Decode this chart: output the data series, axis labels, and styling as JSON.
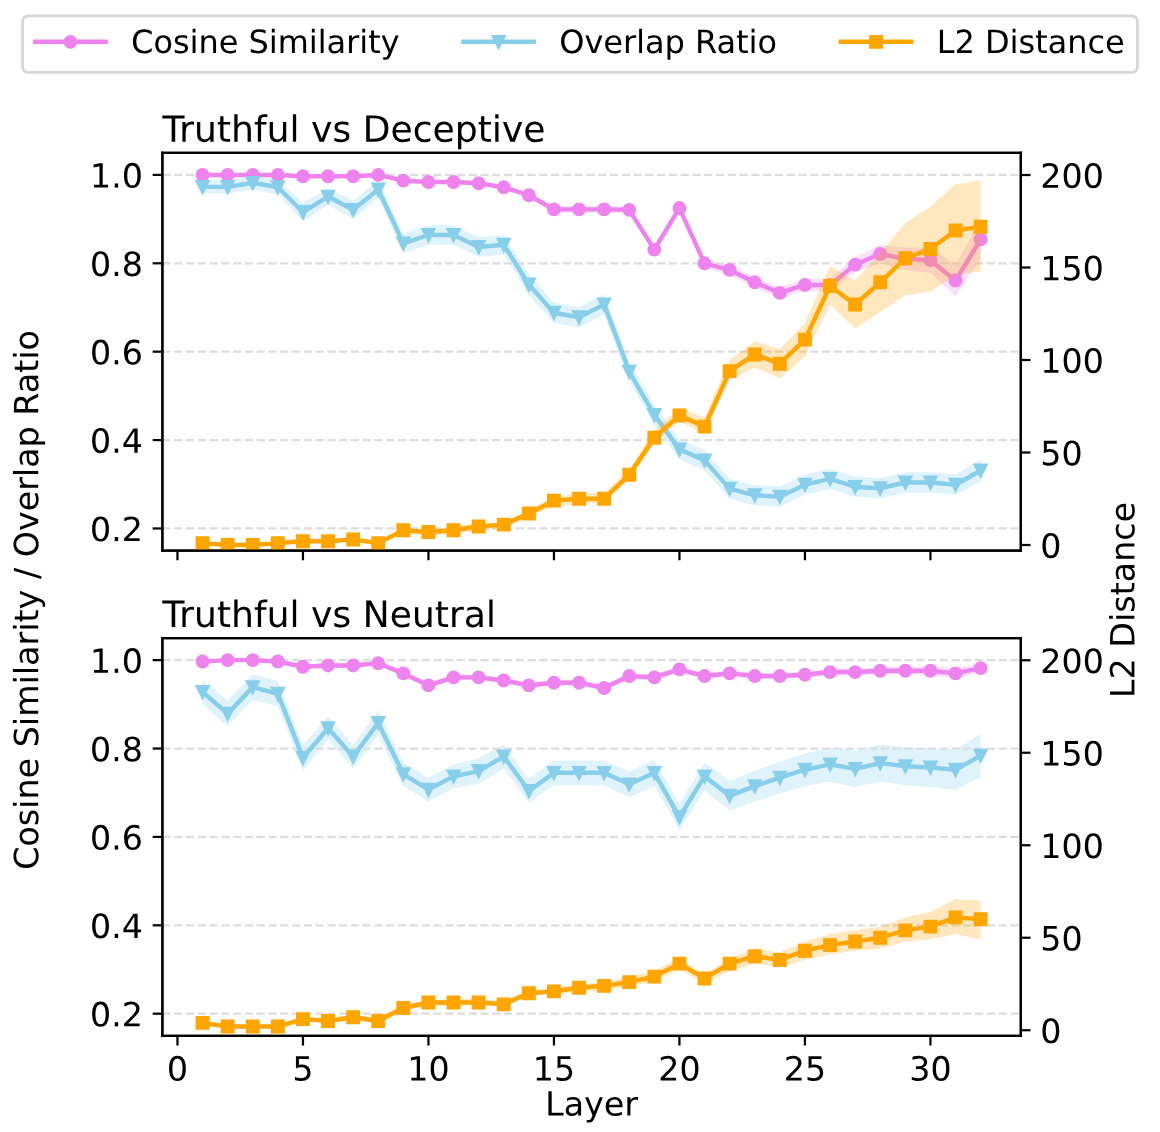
{
  "chart_data": [
    {
      "type": "line",
      "title": "Truthful vs Deceptive",
      "ylabel": "Cosine Similarity / Overlap Ratio",
      "y2label": "L2 Distance",
      "legend": "top",
      "grid": "y",
      "tick_labels": "y",
      "x": [
        1,
        2,
        3,
        4,
        5,
        6,
        7,
        8,
        9,
        10,
        11,
        12,
        13,
        14,
        15,
        16,
        17,
        18,
        19,
        20,
        21,
        22,
        23,
        24,
        25,
        26,
        27,
        28,
        29,
        30,
        31,
        32
      ],
      "xlim": [
        -0.6,
        33.6
      ],
      "xticks": [
        0,
        5,
        10,
        15,
        20,
        25,
        30
      ],
      "ylim": [
        0.15,
        1.05
      ],
      "yticks": [
        {
          "value": 0.2,
          "label": "0.2"
        },
        {
          "value": 0.4,
          "label": "0.4"
        },
        {
          "value": 0.6,
          "label": "0.6"
        },
        {
          "value": 0.8,
          "label": "0.8"
        },
        {
          "value": 1.0,
          "label": "1.0"
        }
      ],
      "y2lim": [
        -3,
        212
      ],
      "y2ticks": [
        0,
        50,
        100,
        150,
        200
      ],
      "series": [
        {
          "name": "Cosine Similarity",
          "color": "#ee82ee",
          "marker": "circle",
          "values": [
            1.0,
            1.0,
            1.0,
            1.0,
            0.997,
            0.997,
            0.997,
            1.0,
            0.987,
            0.984,
            0.984,
            0.981,
            0.972,
            0.954,
            0.922,
            0.922,
            0.922,
            0.921,
            0.831,
            0.925,
            0.8,
            0.785,
            0.757,
            0.733,
            0.751,
            0.751,
            0.797,
            0.821,
            0.81,
            0.807,
            0.761,
            0.854
          ],
          "lower": [
            0.997,
            0.997,
            0.997,
            0.997,
            0.994,
            0.994,
            0.994,
            0.997,
            0.983,
            0.98,
            0.98,
            0.977,
            0.967,
            0.948,
            0.915,
            0.915,
            0.915,
            0.914,
            0.823,
            0.918,
            0.79,
            0.773,
            0.745,
            0.72,
            0.738,
            0.736,
            0.78,
            0.8,
            0.785,
            0.778,
            0.725,
            0.81
          ],
          "upper": [
            1.0,
            1.0,
            1.0,
            1.0,
            1.0,
            1.0,
            1.0,
            1.0,
            0.991,
            0.988,
            0.988,
            0.985,
            0.977,
            0.96,
            0.929,
            0.929,
            0.929,
            0.928,
            0.839,
            0.932,
            0.81,
            0.797,
            0.769,
            0.746,
            0.764,
            0.766,
            0.814,
            0.842,
            0.835,
            0.836,
            0.797,
            0.898
          ]
        },
        {
          "name": "Overlap Ratio",
          "color": "#87ceeb",
          "marker": "triangle",
          "values": [
            0.973,
            0.973,
            0.982,
            0.972,
            0.916,
            0.951,
            0.921,
            0.967,
            0.845,
            0.864,
            0.864,
            0.837,
            0.842,
            0.752,
            0.688,
            0.678,
            0.707,
            0.555,
            0.457,
            0.379,
            0.354,
            0.29,
            0.275,
            0.272,
            0.299,
            0.312,
            0.294,
            0.291,
            0.304,
            0.304,
            0.299,
            0.331
          ],
          "lower": [
            0.958,
            0.958,
            0.967,
            0.955,
            0.895,
            0.932,
            0.9,
            0.948,
            0.822,
            0.842,
            0.842,
            0.815,
            0.82,
            0.728,
            0.665,
            0.655,
            0.684,
            0.532,
            0.434,
            0.356,
            0.331,
            0.267,
            0.252,
            0.249,
            0.276,
            0.289,
            0.271,
            0.268,
            0.281,
            0.281,
            0.276,
            0.306
          ],
          "upper": [
            0.988,
            0.988,
            0.997,
            0.989,
            0.937,
            0.97,
            0.942,
            0.986,
            0.868,
            0.886,
            0.886,
            0.859,
            0.864,
            0.776,
            0.711,
            0.701,
            0.73,
            0.578,
            0.48,
            0.402,
            0.377,
            0.313,
            0.298,
            0.295,
            0.322,
            0.335,
            0.317,
            0.314,
            0.327,
            0.327,
            0.322,
            0.356
          ]
        },
        {
          "name": "L2 Distance",
          "color": "#ffa500",
          "marker": "square",
          "axis": "y2",
          "values": [
            1,
            0,
            0,
            1,
            2,
            2,
            3,
            1,
            8,
            7,
            8,
            10,
            11,
            17,
            24,
            25,
            25,
            38,
            58,
            70,
            64,
            94,
            103,
            98,
            111,
            140,
            130,
            142,
            155,
            160,
            170,
            172
          ],
          "lower": [
            0,
            0,
            0,
            0,
            1,
            1,
            2,
            0,
            6,
            5,
            6,
            8,
            9,
            15,
            21,
            22,
            23,
            35,
            55,
            67,
            60,
            89,
            96,
            90,
            102,
            130,
            117,
            126,
            135,
            137,
            146,
            148
          ],
          "upper": [
            2,
            1,
            1,
            2,
            4,
            3,
            4,
            2,
            9,
            8,
            10,
            12,
            12,
            19,
            26,
            28,
            28,
            41,
            62,
            74,
            69,
            100,
            110,
            106,
            120,
            151,
            143,
            158,
            174,
            183,
            195,
            197
          ]
        }
      ]
    },
    {
      "type": "line",
      "title": "Truthful vs Neutral",
      "xlabel": "Layer",
      "grid": "y",
      "x": [
        1,
        2,
        3,
        4,
        5,
        6,
        7,
        8,
        9,
        10,
        11,
        12,
        13,
        14,
        15,
        16,
        17,
        18,
        19,
        20,
        21,
        22,
        23,
        24,
        25,
        26,
        27,
        28,
        29,
        30,
        31,
        32
      ],
      "xlim": [
        -0.6,
        33.6
      ],
      "xticks": [
        0,
        5,
        10,
        15,
        20,
        25,
        30
      ],
      "ylim": [
        0.15,
        1.05
      ],
      "yticks": [
        {
          "value": 0.2,
          "label": "0.2"
        },
        {
          "value": 0.4,
          "label": "0.4"
        },
        {
          "value": 0.6,
          "label": "0.6"
        },
        {
          "value": 0.8,
          "label": "0.8"
        },
        {
          "value": 1.0,
          "label": "1.0"
        }
      ],
      "y2lim": [
        -3,
        212
      ],
      "y2ticks": [
        0,
        50,
        100,
        150,
        200
      ],
      "series": [
        {
          "color": "#ee82ee",
          "marker": "circle",
          "values": [
            0.997,
            1.0,
            1.0,
            0.997,
            0.985,
            0.988,
            0.988,
            0.993,
            0.97,
            0.943,
            0.961,
            0.961,
            0.954,
            0.943,
            0.949,
            0.949,
            0.937,
            0.964,
            0.961,
            0.979,
            0.964,
            0.97,
            0.964,
            0.964,
            0.967,
            0.973,
            0.973,
            0.976,
            0.976,
            0.976,
            0.97,
            0.982
          ],
          "lower": [
            0.993,
            0.996,
            0.996,
            0.993,
            0.98,
            0.983,
            0.983,
            0.988,
            0.964,
            0.936,
            0.955,
            0.955,
            0.948,
            0.936,
            0.942,
            0.942,
            0.93,
            0.957,
            0.954,
            0.972,
            0.957,
            0.963,
            0.957,
            0.957,
            0.96,
            0.965,
            0.965,
            0.968,
            0.967,
            0.966,
            0.958,
            0.972
          ],
          "upper": [
            1.0,
            1.0,
            1.0,
            1.0,
            0.99,
            0.993,
            0.993,
            0.998,
            0.976,
            0.95,
            0.967,
            0.967,
            0.96,
            0.95,
            0.956,
            0.956,
            0.944,
            0.971,
            0.968,
            0.986,
            0.971,
            0.977,
            0.971,
            0.971,
            0.974,
            0.981,
            0.981,
            0.984,
            0.985,
            0.986,
            0.982,
            0.992
          ]
        },
        {
          "color": "#87ceeb",
          "marker": "triangle",
          "values": [
            0.928,
            0.879,
            0.939,
            0.924,
            0.779,
            0.846,
            0.782,
            0.858,
            0.742,
            0.707,
            0.737,
            0.749,
            0.782,
            0.704,
            0.745,
            0.745,
            0.745,
            0.719,
            0.745,
            0.645,
            0.737,
            0.693,
            0.715,
            0.734,
            0.752,
            0.764,
            0.754,
            0.767,
            0.76,
            0.757,
            0.752,
            0.784
          ],
          "lower": [
            0.9,
            0.85,
            0.91,
            0.895,
            0.75,
            0.82,
            0.755,
            0.83,
            0.715,
            0.68,
            0.71,
            0.72,
            0.755,
            0.677,
            0.717,
            0.717,
            0.717,
            0.69,
            0.715,
            0.615,
            0.705,
            0.66,
            0.68,
            0.698,
            0.715,
            0.725,
            0.713,
            0.725,
            0.717,
            0.713,
            0.707,
            0.735
          ],
          "upper": [
            0.956,
            0.908,
            0.968,
            0.953,
            0.808,
            0.872,
            0.809,
            0.886,
            0.769,
            0.734,
            0.764,
            0.778,
            0.809,
            0.731,
            0.773,
            0.773,
            0.773,
            0.748,
            0.775,
            0.675,
            0.769,
            0.726,
            0.75,
            0.77,
            0.789,
            0.803,
            0.795,
            0.809,
            0.803,
            0.801,
            0.797,
            0.833
          ]
        },
        {
          "color": "#ffa500",
          "marker": "square",
          "axis": "y2",
          "values": [
            4,
            2,
            2,
            2,
            6,
            5,
            7,
            5,
            12,
            15,
            15,
            15,
            14,
            20,
            21,
            23,
            24,
            26,
            29,
            36,
            28,
            36,
            40,
            38,
            43,
            46,
            48,
            50,
            54,
            56,
            61,
            60
          ],
          "lower": [
            2,
            1,
            1,
            1,
            5,
            4,
            5,
            4,
            11,
            13,
            13,
            14,
            13,
            19,
            19,
            21,
            21,
            24,
            26,
            33,
            25,
            32,
            36,
            34,
            38,
            41,
            43,
            44,
            48,
            49,
            52,
            49
          ],
          "upper": [
            5,
            3,
            3,
            3,
            7,
            7,
            8,
            7,
            14,
            16,
            17,
            17,
            16,
            22,
            23,
            25,
            26,
            29,
            32,
            39,
            30,
            39,
            44,
            42,
            48,
            52,
            54,
            56,
            61,
            64,
            71,
            70
          ]
        }
      ]
    }
  ]
}
